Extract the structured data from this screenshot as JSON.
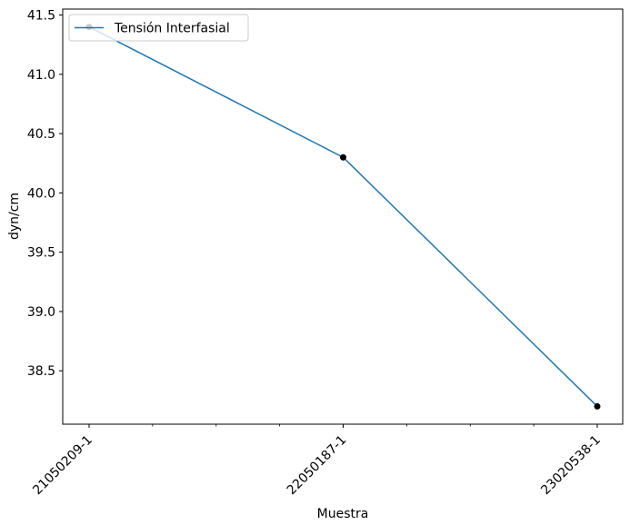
{
  "chart_data": {
    "type": "line",
    "title": "",
    "xlabel": "Muestra",
    "ylabel": "dyn/cm",
    "categories": [
      "21050209-1",
      "22050187-1",
      "23020538-1"
    ],
    "series": [
      {
        "name": "Tensión Interfasial",
        "values": [
          41.4,
          40.3,
          38.2
        ],
        "color": "#1f77b4"
      }
    ],
    "ylim": [
      38.05,
      41.55
    ],
    "yticks": [
      38.5,
      39.0,
      39.5,
      40.0,
      40.5,
      41.0,
      41.5
    ],
    "ytick_labels": [
      "38.5",
      "39.0",
      "39.5",
      "40.0",
      "40.5",
      "41.0",
      "41.5"
    ],
    "marker_color": "#000000",
    "grid": false,
    "legend_position": "upper-left"
  }
}
